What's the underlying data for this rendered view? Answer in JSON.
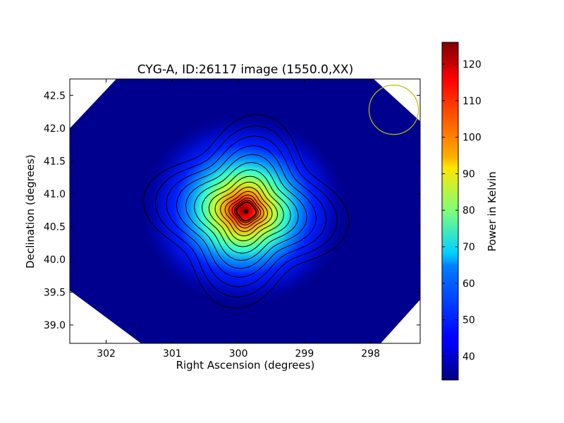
{
  "chart_data": {
    "type": "heatmap",
    "title": "CYG-A, ID:26117 image (1550.0,XX)",
    "xlabel": "Right Ascension (degrees)",
    "ylabel": "Declination (degrees)",
    "xlim": [
      302.55,
      297.25
    ],
    "ylim": [
      38.72,
      42.75
    ],
    "x_ticks": [
      302,
      301,
      300,
      299,
      298
    ],
    "y_ticks": [
      39.0,
      39.5,
      40.0,
      40.5,
      41.0,
      41.5,
      42.0,
      42.5
    ],
    "x_tick_labels": [
      "302",
      "301",
      "300",
      "299",
      "298"
    ],
    "y_tick_labels": [
      "39.0",
      "39.5",
      "40.0",
      "40.5",
      "41.0",
      "41.5",
      "42.0",
      "42.5"
    ],
    "source_peak": {
      "ra": 299.88,
      "dec": 40.73,
      "power": 125
    },
    "background_power": 36,
    "contour_count": 16,
    "beam_circle": {
      "ra": 297.65,
      "dec": 42.28,
      "color": "#bfbf00"
    },
    "colorbar": {
      "label": "Power in Kelvin",
      "min": 33.5,
      "max": 126,
      "ticks": [
        40,
        50,
        60,
        70,
        80,
        90,
        100,
        110,
        120
      ],
      "tick_labels": [
        "40",
        "50",
        "60",
        "70",
        "80",
        "90",
        "100",
        "110",
        "120"
      ],
      "colormap": "jet"
    },
    "grid": false,
    "background_color": "#000080"
  }
}
